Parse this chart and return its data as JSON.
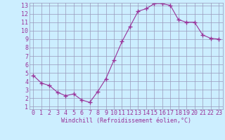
{
  "x": [
    0,
    1,
    2,
    3,
    4,
    5,
    6,
    7,
    8,
    9,
    10,
    11,
    12,
    13,
    14,
    15,
    16,
    17,
    18,
    19,
    20,
    21,
    22,
    23
  ],
  "y": [
    4.7,
    3.8,
    3.5,
    2.7,
    2.3,
    2.5,
    1.8,
    1.5,
    2.8,
    4.3,
    6.5,
    8.7,
    10.5,
    12.3,
    12.6,
    13.2,
    13.2,
    13.0,
    11.3,
    11.0,
    11.0,
    9.5,
    9.1,
    9.0
  ],
  "line_color": "#993399",
  "marker": "+",
  "marker_size": 5,
  "bg_color": "#cceeff",
  "grid_color": "#9999bb",
  "xlabel": "Windchill (Refroidissement éolien,°C)",
  "xlabel_color": "#993399",
  "tick_color": "#993399",
  "ylim": [
    1,
    13
  ],
  "xlim": [
    0,
    23
  ],
  "yticks": [
    1,
    2,
    3,
    4,
    5,
    6,
    7,
    8,
    9,
    10,
    11,
    12,
    13
  ],
  "xticks": [
    0,
    1,
    2,
    3,
    4,
    5,
    6,
    7,
    8,
    9,
    10,
    11,
    12,
    13,
    14,
    15,
    16,
    17,
    18,
    19,
    20,
    21,
    22,
    23
  ],
  "font_size": 6.0
}
